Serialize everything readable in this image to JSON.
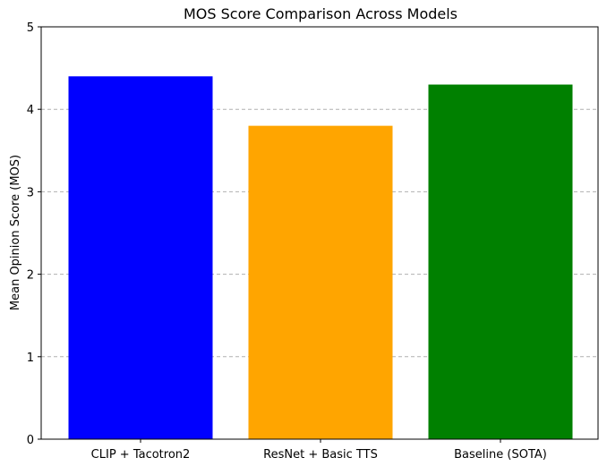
{
  "chart_data": {
    "type": "bar",
    "title": "MOS Score Comparison Across Models",
    "xlabel": "",
    "ylabel": "Mean Opinion Score (MOS)",
    "categories": [
      "CLIP + Tacotron2",
      "ResNet + Basic TTS",
      "Baseline (SOTA)"
    ],
    "values": [
      4.4,
      3.8,
      4.3
    ],
    "colors": [
      "#0000ff",
      "#ffa500",
      "#008000"
    ],
    "ylim": [
      0,
      5
    ],
    "yticks": [
      "0",
      "1",
      "2",
      "3",
      "4",
      "5"
    ],
    "grid": "y-dashed",
    "grid_color": "#b0b0b0"
  }
}
